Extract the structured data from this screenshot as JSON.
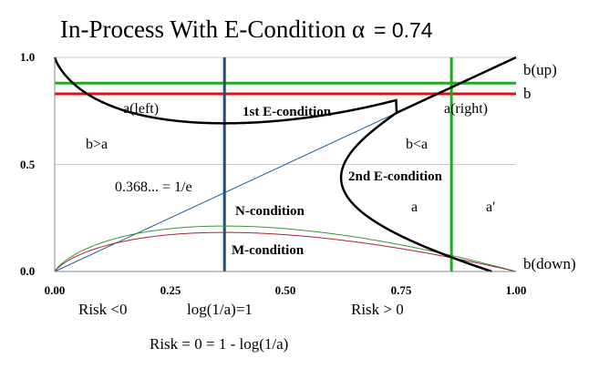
{
  "title": {
    "main": "In-Process With E-Condition",
    "alpha_symbol": "α",
    "alpha_value": "= 0.74"
  },
  "chart_data": {
    "type": "line",
    "xlim": [
      0,
      1
    ],
    "ylim": [
      0,
      1
    ],
    "grid": "horizontal",
    "x_ticks": [
      "0.00",
      "0.25",
      "0.50",
      "0.75",
      "1.00"
    ],
    "y_ticks": [
      "0.0",
      "0.5",
      "1.0"
    ],
    "alpha": 0.74,
    "vertical_lines": [
      {
        "x": 0.368,
        "color": "#1f4e79"
      },
      {
        "x": 0.86,
        "color": "#22aa22"
      }
    ],
    "horizontal_lines": [
      {
        "y": 0.88,
        "color": "#22aa22"
      },
      {
        "y": 0.83,
        "color": "#dd1111"
      }
    ],
    "diagonal": {
      "from": [
        0,
        0
      ],
      "to": [
        1,
        1
      ],
      "color": "#1f5f9f"
    },
    "colors": {
      "e_curve": "#000000",
      "green_hump": "#339933",
      "red_hump": "#aa2233",
      "grid": "#c8c8c8"
    },
    "annotations": {
      "b_up": "b(up)",
      "b": "b",
      "b_down": "b(down)",
      "a_left": "a(left)",
      "a_right": "a(right)",
      "e1": "1st E-condition",
      "e2": "2nd E-condition",
      "b_gt_a": "b>a",
      "b_lt_a": "b<a",
      "inv_e": "0.368... = 1/e",
      "n_cond": "N-condition",
      "m_cond": "M-condition",
      "a_lbl": "a",
      "a_prime": "a'"
    }
  },
  "footer": {
    "risk_neg": "Risk <0",
    "log_eq": "log(1/a)=1",
    "risk_pos": "Risk > 0",
    "risk_zero": "Risk = 0 = 1 - log(1/a)"
  }
}
